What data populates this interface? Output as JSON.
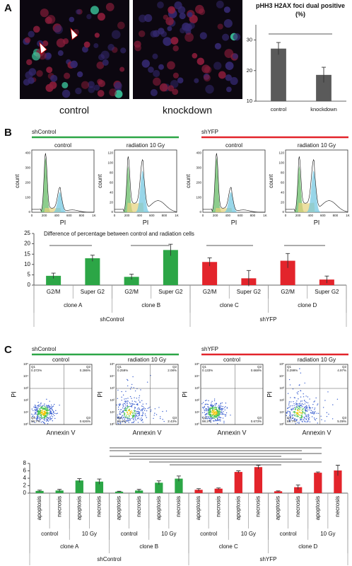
{
  "panel_labels": [
    "A",
    "B",
    "C"
  ],
  "panel_a": {
    "images": [
      "control",
      "knockdown"
    ]
  },
  "panel_b": {
    "groups": [
      {
        "name": "shControl",
        "color": "#2ca646"
      },
      {
        "name": "shYFP",
        "color": "#e3242b"
      }
    ],
    "histograms": [
      {
        "title": "control",
        "ylabel": "count",
        "xlabel": "PI",
        "yticks": [
          "0",
          "100",
          "200",
          "300",
          "400"
        ],
        "xticks": [
          "0",
          "200",
          "400",
          "600",
          "800",
          "1K"
        ]
      },
      {
        "title": "radiation 10 Gy",
        "ylabel": "count",
        "xlabel": "PI",
        "yticks": [
          "0",
          "20",
          "40",
          "60",
          "80",
          "100",
          "120"
        ],
        "xticks": [
          "0",
          "200",
          "400",
          "600",
          "800",
          "1K"
        ]
      },
      {
        "title": "control",
        "ylabel": "count",
        "xlabel": "PI",
        "yticks": [
          "0",
          "100",
          "200",
          "300",
          "400"
        ],
        "xticks": [
          "0",
          "200",
          "400",
          "600",
          "800",
          "1K"
        ]
      },
      {
        "title": "radiation 10 Gy",
        "ylabel": "count",
        "xlabel": "PI",
        "yticks": [
          "0",
          "20",
          "40",
          "60",
          "80",
          "100",
          "120"
        ],
        "xticks": [
          "0",
          "200",
          "400",
          "600",
          "800",
          "1K"
        ]
      }
    ]
  },
  "panel_c": {
    "groups": [
      {
        "name": "shControl",
        "color": "#2ca646"
      },
      {
        "name": "shYFP",
        "color": "#e3242b"
      }
    ],
    "dotplots": [
      {
        "title": "control",
        "ylabel": "PI",
        "xlabel": "Annexin V",
        "ticks": [
          "10⁰",
          "10¹",
          "10²",
          "10³",
          "10⁴",
          "10⁵"
        ],
        "quadrants": [
          {
            "name": "Q1",
            "percent": "0.372%"
          },
          {
            "name": "Q2",
            "percent": "0.286%"
          },
          {
            "name": "Q3",
            "percent": "0.626%"
          },
          {
            "name": "Q4",
            "percent": "98.7%"
          }
        ]
      },
      {
        "title": "radiation 10 Gy",
        "ylabel": "PI",
        "xlabel": "Annexin V",
        "ticks": [
          "10⁰",
          "10¹",
          "10²",
          "10³",
          "10⁴",
          "10⁵"
        ],
        "quadrants": [
          {
            "name": "Q1",
            "percent": "0.259%"
          },
          {
            "name": "Q2",
            "percent": "2.08%"
          },
          {
            "name": "Q3",
            "percent": "2.43%"
          },
          {
            "name": "Q4",
            "percent": "95.2%"
          }
        ]
      },
      {
        "title": "control",
        "ylabel": "PI",
        "xlabel": "Annexin V",
        "ticks": [
          "10⁰",
          "10¹",
          "10²",
          "10³",
          "10⁴",
          "10⁵"
        ],
        "quadrants": [
          {
            "name": "Q1",
            "percent": "0.133%"
          },
          {
            "name": "Q2",
            "percent": "0.668%"
          },
          {
            "name": "Q3",
            "percent": "0.673%"
          },
          {
            "name": "Q4",
            "percent": "98.2%"
          }
        ]
      },
      {
        "title": "radiation 10 Gy",
        "ylabel": "PI",
        "xlabel": "Annexin V",
        "ticks": [
          "10⁰",
          "10¹",
          "10²",
          "10³",
          "10⁴",
          "10⁵"
        ],
        "quadrants": [
          {
            "name": "Q1",
            "percent": "0.299%"
          },
          {
            "name": "Q2",
            "percent": "4.97%"
          },
          {
            "name": "Q3",
            "percent": "5.09%"
          },
          {
            "name": "Q4",
            "percent": "89.7%"
          }
        ]
      }
    ]
  },
  "chart_data": [
    {
      "type": "bar",
      "title": "pHH3 H2AX foci dual positive (%)",
      "categories": [
        "control",
        "knockdown"
      ],
      "values": [
        27.2,
        18.6
      ],
      "errors": [
        2.0,
        2.5
      ],
      "color": "#5a5a5a",
      "ylim": [
        10,
        35
      ],
      "yticks": [
        10,
        20,
        30
      ]
    },
    {
      "type": "bar",
      "title": "Difference of percentage between control and radiation  cells",
      "categories": [
        "G2/M",
        "Super G2",
        "G2/M",
        "Super G2",
        "G2/M",
        "Super G2",
        "G2/M",
        "Super G2"
      ],
      "values": [
        4.5,
        13,
        4,
        17,
        11.2,
        3.3,
        11.8,
        2.7
      ],
      "errors": [
        1.3,
        1.5,
        1.3,
        2.8,
        2,
        3.8,
        3.5,
        1.7
      ],
      "colors": [
        "#2ca646",
        "#2ca646",
        "#2ca646",
        "#2ca646",
        "#e3242b",
        "#e3242b",
        "#e3242b",
        "#e3242b"
      ],
      "groups": [
        "clone A",
        "clone B",
        "clone C",
        "clone D"
      ],
      "supergroups": [
        "shControl",
        "shYFP"
      ],
      "ylim": [
        0,
        25
      ],
      "yticks": [
        0,
        5,
        10,
        15,
        20,
        25
      ]
    },
    {
      "type": "bar",
      "categories": [
        "apoptosis",
        "necrosis",
        "apoptosis",
        "necrosis",
        "apoptosis",
        "necrosis",
        "apoptosis",
        "necrosis",
        "apoptosis",
        "necrosis",
        "apoptosis",
        "necrosis",
        "apoptosis",
        "necrosis",
        "apoptosis",
        "necrosis"
      ],
      "values": [
        0.6,
        0.7,
        3.4,
        3.1,
        0.4,
        0.7,
        2.8,
        3.9,
        0.9,
        1.2,
        5.7,
        7.0,
        0.5,
        1.6,
        5.5,
        6.1
      ],
      "errors": [
        0.2,
        0.3,
        0.5,
        0.7,
        0.1,
        0.3,
        0.5,
        0.7,
        0.3,
        0.2,
        0.3,
        0.5,
        0.1,
        0.6,
        0.2,
        1.4
      ],
      "colors": [
        "#2ca646",
        "#2ca646",
        "#2ca646",
        "#2ca646",
        "#2ca646",
        "#2ca646",
        "#2ca646",
        "#2ca646",
        "#e3242b",
        "#e3242b",
        "#e3242b",
        "#e3242b",
        "#e3242b",
        "#e3242b",
        "#e3242b",
        "#e3242b"
      ],
      "subgroups": [
        "control",
        "10 Gy",
        "control",
        "10 Gy",
        "control",
        "10 Gy",
        "control",
        "10 Gy"
      ],
      "groups": [
        "clone A",
        "clone B",
        "clone C",
        "clone D"
      ],
      "supergroups": [
        "shControl",
        "shYFP"
      ],
      "ylim": [
        0,
        8
      ],
      "yticks": [
        0,
        2,
        4,
        6,
        8
      ]
    }
  ]
}
